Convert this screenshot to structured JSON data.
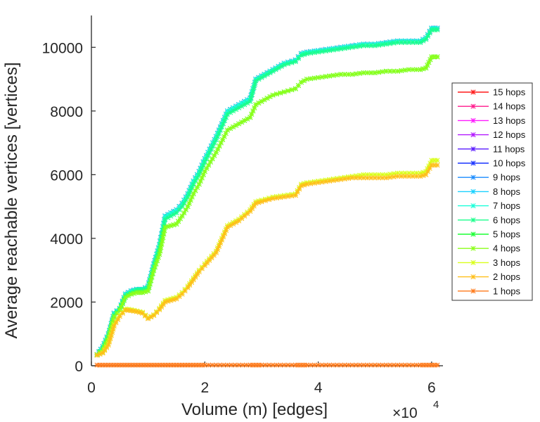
{
  "chart_data": {
    "type": "line",
    "xlabel": "Volume (m) [edges]",
    "ylabel": "Average reachable vertices [vertices]",
    "x_multiplier": "×10",
    "x_multiplier_exp": "4",
    "xlim": [
      0,
      62000
    ],
    "ylim": [
      0,
      11000
    ],
    "xticks": [
      0,
      20000,
      40000,
      60000
    ],
    "xtick_labels": [
      "0",
      "2",
      "4",
      "6"
    ],
    "yticks": [
      0,
      2000,
      4000,
      6000,
      8000,
      10000
    ],
    "ytick_labels": [
      "0",
      "2000",
      "4000",
      "6000",
      "8000",
      "10000"
    ],
    "grid": false,
    "legend_position": "right",
    "x": [
      1000,
      2000,
      3000,
      4000,
      5000,
      6000,
      7000,
      8000,
      9000,
      10000,
      11000,
      12000,
      13000,
      14000,
      15000,
      16000,
      17000,
      18000,
      19000,
      20000,
      22000,
      24000,
      26000,
      28000,
      29000,
      30000,
      32000,
      34000,
      36000,
      37000,
      38000,
      40000,
      42000,
      44000,
      46000,
      48000,
      50000,
      52000,
      54000,
      56000,
      58000,
      59000,
      60000,
      61000
    ],
    "series": [
      {
        "name": "15 hops",
        "color": "#ff1a1a",
        "values": [
          350,
          600,
          1000,
          1650,
          1800,
          2250,
          2350,
          2400,
          2400,
          2500,
          3200,
          3800,
          4700,
          4800,
          4900,
          5100,
          5400,
          5800,
          6100,
          6500,
          7200,
          8000,
          8200,
          8400,
          9000,
          9100,
          9300,
          9500,
          9600,
          9800,
          9850,
          9900,
          9950,
          10000,
          10050,
          10100,
          10100,
          10150,
          10200,
          10200,
          10200,
          10300,
          10600,
          10600
        ]
      },
      {
        "name": "14 hops",
        "color": "#ff1a8c",
        "values": [
          350,
          600,
          1000,
          1650,
          1800,
          2250,
          2350,
          2400,
          2400,
          2500,
          3200,
          3800,
          4700,
          4800,
          4900,
          5100,
          5400,
          5800,
          6100,
          6500,
          7200,
          8000,
          8200,
          8400,
          9000,
          9100,
          9300,
          9500,
          9600,
          9800,
          9850,
          9900,
          9950,
          10000,
          10050,
          10100,
          10100,
          10150,
          10200,
          10200,
          10200,
          10300,
          10600,
          10600
        ]
      },
      {
        "name": "13 hops",
        "color": "#ff1aff",
        "values": [
          350,
          600,
          1000,
          1650,
          1800,
          2250,
          2350,
          2400,
          2400,
          2500,
          3200,
          3800,
          4700,
          4800,
          4900,
          5100,
          5400,
          5800,
          6100,
          6500,
          7200,
          8000,
          8200,
          8400,
          9000,
          9100,
          9300,
          9500,
          9600,
          9800,
          9850,
          9900,
          9950,
          10000,
          10050,
          10100,
          10100,
          10150,
          10200,
          10200,
          10200,
          10300,
          10600,
          10600
        ]
      },
      {
        "name": "12 hops",
        "color": "#b31aff",
        "values": [
          350,
          600,
          1000,
          1650,
          1800,
          2250,
          2350,
          2400,
          2400,
          2500,
          3200,
          3800,
          4700,
          4800,
          4900,
          5100,
          5400,
          5800,
          6100,
          6500,
          7200,
          8000,
          8200,
          8400,
          9000,
          9100,
          9300,
          9500,
          9600,
          9800,
          9850,
          9900,
          9950,
          10000,
          10050,
          10100,
          10100,
          10150,
          10200,
          10200,
          10200,
          10300,
          10600,
          10600
        ]
      },
      {
        "name": "11 hops",
        "color": "#5a1aff",
        "values": [
          350,
          600,
          1000,
          1650,
          1800,
          2250,
          2350,
          2400,
          2400,
          2500,
          3200,
          3800,
          4700,
          4800,
          4900,
          5100,
          5400,
          5800,
          6100,
          6500,
          7200,
          8000,
          8200,
          8400,
          9000,
          9100,
          9300,
          9500,
          9600,
          9800,
          9850,
          9900,
          9950,
          10000,
          10050,
          10100,
          10100,
          10150,
          10200,
          10200,
          10200,
          10300,
          10600,
          10600
        ]
      },
      {
        "name": "10 hops",
        "color": "#1a33ff",
        "values": [
          350,
          600,
          1000,
          1650,
          1800,
          2250,
          2350,
          2400,
          2400,
          2500,
          3200,
          3800,
          4700,
          4800,
          4900,
          5100,
          5400,
          5800,
          6100,
          6500,
          7200,
          8000,
          8200,
          8400,
          9000,
          9100,
          9300,
          9500,
          9600,
          9800,
          9850,
          9900,
          9950,
          10000,
          10050,
          10100,
          10100,
          10150,
          10200,
          10200,
          10200,
          10300,
          10600,
          10600
        ]
      },
      {
        "name": "9 hops",
        "color": "#1a8cff",
        "values": [
          350,
          600,
          1000,
          1650,
          1800,
          2250,
          2350,
          2400,
          2400,
          2500,
          3200,
          3800,
          4700,
          4800,
          4900,
          5100,
          5400,
          5800,
          6100,
          6500,
          7200,
          8000,
          8200,
          8400,
          9000,
          9100,
          9300,
          9500,
          9600,
          9800,
          9850,
          9900,
          9950,
          10000,
          10050,
          10100,
          10100,
          10150,
          10200,
          10200,
          10200,
          10300,
          10600,
          10600
        ]
      },
      {
        "name": "8 hops",
        "color": "#1ad1ff",
        "values": [
          350,
          600,
          1000,
          1650,
          1800,
          2250,
          2350,
          2400,
          2400,
          2500,
          3200,
          3800,
          4700,
          4800,
          4900,
          5100,
          5400,
          5800,
          6100,
          6500,
          7200,
          8000,
          8200,
          8400,
          9000,
          9100,
          9300,
          9500,
          9600,
          9800,
          9850,
          9900,
          9950,
          10000,
          10050,
          10100,
          10100,
          10150,
          10200,
          10200,
          10200,
          10300,
          10600,
          10600
        ]
      },
      {
        "name": "7 hops",
        "color": "#1affd9",
        "values": [
          350,
          600,
          1000,
          1650,
          1800,
          2250,
          2350,
          2400,
          2400,
          2500,
          3200,
          3800,
          4700,
          4800,
          4900,
          5100,
          5400,
          5800,
          6100,
          6500,
          7200,
          8000,
          8200,
          8400,
          9000,
          9100,
          9300,
          9500,
          9600,
          9800,
          9850,
          9900,
          9950,
          10000,
          10050,
          10100,
          10100,
          10150,
          10200,
          10200,
          10200,
          10300,
          10600,
          10600
        ]
      },
      {
        "name": "6 hops",
        "color": "#1aff8c",
        "values": [
          350,
          550,
          950,
          1600,
          1780,
          2200,
          2300,
          2380,
          2380,
          2450,
          3100,
          3700,
          4600,
          4700,
          4800,
          5000,
          5300,
          5700,
          6000,
          6400,
          7100,
          7900,
          8100,
          8300,
          8950,
          9050,
          9250,
          9450,
          9550,
          9750,
          9800,
          9850,
          9900,
          9950,
          10000,
          10050,
          10050,
          10100,
          10150,
          10150,
          10150,
          10250,
          10550,
          10550
        ]
      },
      {
        "name": "5 hops",
        "color": "#1aff33",
        "values": [
          350,
          500,
          900,
          1550,
          1750,
          2150,
          2250,
          2300,
          2300,
          2350,
          3000,
          3500,
          4350,
          4400,
          4450,
          4700,
          5000,
          5400,
          5700,
          6100,
          6700,
          7400,
          7600,
          7800,
          8200,
          8300,
          8500,
          8600,
          8700,
          8900,
          9000,
          9050,
          9100,
          9150,
          9150,
          9200,
          9200,
          9250,
          9250,
          9300,
          9300,
          9350,
          9700,
          9700
        ]
      },
      {
        "name": "4 hops",
        "color": "#8cff1a",
        "values": [
          350,
          500,
          900,
          1550,
          1750,
          2150,
          2250,
          2300,
          2300,
          2350,
          3000,
          3500,
          4350,
          4400,
          4450,
          4700,
          5000,
          5400,
          5700,
          6100,
          6700,
          7400,
          7600,
          7800,
          8200,
          8300,
          8500,
          8600,
          8700,
          8900,
          9000,
          9050,
          9100,
          9150,
          9150,
          9200,
          9200,
          9250,
          9250,
          9300,
          9300,
          9350,
          9700,
          9700
        ]
      },
      {
        "name": "3 hops",
        "color": "#d9ff1a",
        "values": [
          330,
          420,
          700,
          1300,
          1600,
          1780,
          1760,
          1720,
          1680,
          1500,
          1600,
          1800,
          2050,
          2100,
          2150,
          2300,
          2500,
          2750,
          3000,
          3200,
          3600,
          4400,
          4600,
          4900,
          5150,
          5200,
          5300,
          5350,
          5400,
          5700,
          5750,
          5800,
          5850,
          5900,
          5950,
          6000,
          6000,
          6000,
          6050,
          6050,
          6050,
          6100,
          6450,
          6450
        ]
      },
      {
        "name": "2 hops",
        "color": "#ffbf1a",
        "values": [
          330,
          400,
          650,
          1250,
          1550,
          1750,
          1730,
          1700,
          1650,
          1480,
          1580,
          1760,
          2000,
          2050,
          2100,
          2250,
          2450,
          2700,
          2950,
          3150,
          3550,
          4350,
          4550,
          4850,
          5100,
          5150,
          5250,
          5300,
          5350,
          5650,
          5700,
          5750,
          5800,
          5850,
          5900,
          5900,
          5900,
          5900,
          5950,
          5950,
          5950,
          6000,
          6300,
          6300
        ]
      },
      {
        "name": "1 hops",
        "color": "#ff7a1a",
        "values": [
          20,
          20,
          20,
          20,
          20,
          20,
          20,
          20,
          20,
          20,
          20,
          20,
          20,
          20,
          20,
          20,
          20,
          20,
          20,
          20,
          20,
          20,
          20,
          20,
          20,
          20,
          20,
          20,
          20,
          20,
          20,
          20,
          20,
          20,
          20,
          20,
          20,
          20,
          20,
          20,
          20,
          20,
          20,
          20
        ]
      }
    ]
  }
}
